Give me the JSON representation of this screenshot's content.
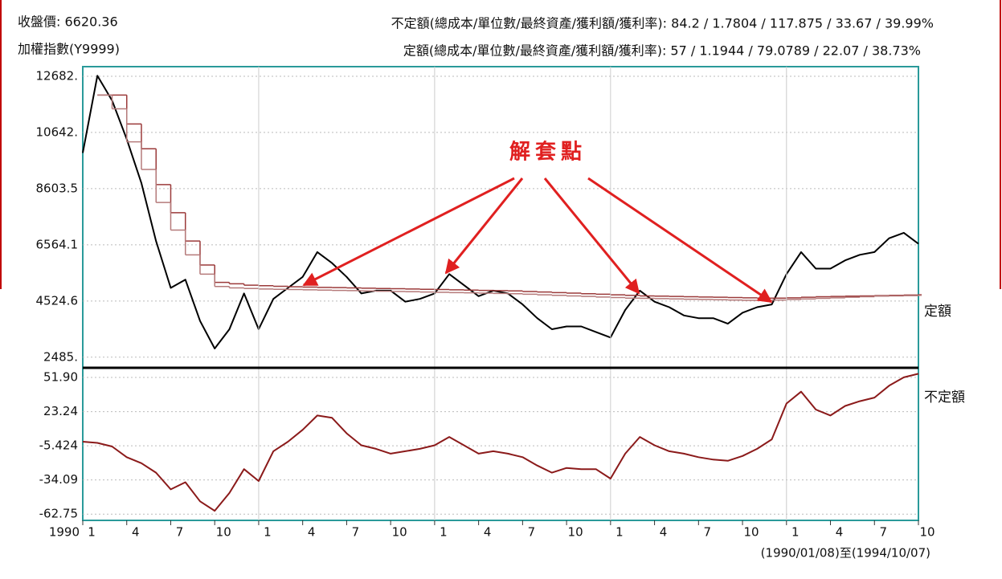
{
  "header": {
    "close": "收盤價: 6620.36",
    "index_name": "加權指數(Y9999)",
    "variable_summary": "不定額(總成本/單位數/最終資產/獲利額/獲利率): 84.2 / 1.7804 / 117.875 / 33.67 / 39.99%",
    "fixed_summary": "定額(總成本/單位數/最終資產/獲利額/獲利率): 57 / 1.1944 / 79.0789 / 22.07 / 38.73%"
  },
  "chart_data": [
    {
      "type": "line",
      "annotation": "解套點",
      "grid": true,
      "xlim": [
        0,
        57
      ],
      "ylim": [
        2100,
        13030
      ],
      "yticks": [
        {
          "value": 12682,
          "label": "12682."
        },
        {
          "value": 10642,
          "label": "10642."
        },
        8603.5,
        6564.1,
        4524.6,
        {
          "value": 2485,
          "label": "2485."
        }
      ],
      "series": [
        {
          "name": "加權指數(Y9999)",
          "color": "#000000",
          "values": [
            9900,
            12700,
            11800,
            10400,
            8800,
            6700,
            5000,
            5300,
            3800,
            2800,
            3500,
            4800,
            3500,
            4600,
            5000,
            5400,
            6300,
            5900,
            5400,
            4800,
            4900,
            4900,
            4500,
            4600,
            4800,
            5500,
            5100,
            4700,
            4900,
            4800,
            4400,
            3900,
            3500,
            3600,
            3600,
            3400,
            3200,
            4200,
            4900,
            4500,
            4300,
            4000,
            3900,
            3900,
            3700,
            4100,
            4300,
            4400,
            5500,
            6300,
            5700,
            5700,
            6000,
            6200,
            6300,
            6800,
            7000,
            6600
          ]
        },
        {
          "name": "定額",
          "color": "#9b3a3a",
          "step": true,
          "values": [
            null,
            12000,
            12000,
            10950,
            10050,
            8750,
            7730,
            6700,
            5830,
            5200,
            5150,
            5100,
            5080,
            5060,
            5040,
            5030,
            5020,
            5010,
            5000,
            4990,
            4980,
            4970,
            4960,
            4950,
            4940,
            4930,
            4920,
            4910,
            4900,
            4890,
            4870,
            4850,
            4830,
            4810,
            4790,
            4770,
            4750,
            4730,
            4710,
            4700,
            4690,
            4680,
            4670,
            4660,
            4650,
            4640,
            4630,
            4630,
            4640,
            4660,
            4680,
            4690,
            4700,
            4710,
            4720,
            4730,
            4740,
            4750
          ]
        },
        {
          "color": "#b57a7a",
          "step": true,
          "values": [
            null,
            12000,
            11500,
            10300,
            9300,
            8100,
            7100,
            6200,
            5500,
            5050,
            5000,
            4980,
            4960,
            4950,
            4940,
            4930,
            4920,
            4910,
            4900,
            4890,
            4880,
            4870,
            4860,
            4850,
            4840,
            4830,
            4820,
            4810,
            4800,
            4790,
            4770,
            4750,
            4730,
            4710,
            4690,
            4670,
            4650,
            4630,
            4620,
            4610,
            4600,
            4590,
            4580,
            4570,
            4560,
            4550,
            4550,
            4560,
            4580,
            4600,
            4620,
            4640,
            4660,
            4680,
            4700,
            4710,
            4720,
            4730
          ]
        }
      ]
    },
    {
      "type": "line",
      "grid": true,
      "x_start_label": "1990",
      "date_range": "(1990/01/08)至(1994/10/07)",
      "xlim": [
        0,
        57
      ],
      "ylim": [
        -68,
        60
      ],
      "xticks": [
        {
          "value": 0,
          "label": "1"
        },
        {
          "value": 3,
          "label": "4"
        },
        {
          "value": 6,
          "label": "7"
        },
        {
          "value": 9,
          "label": "10"
        },
        {
          "value": 12,
          "label": "1"
        },
        {
          "value": 15,
          "label": "4"
        },
        {
          "value": 18,
          "label": "7"
        },
        {
          "value": 21,
          "label": "10"
        },
        {
          "value": 24,
          "label": "1"
        },
        {
          "value": 27,
          "label": "4"
        },
        {
          "value": 30,
          "label": "7"
        },
        {
          "value": 33,
          "label": "10"
        },
        {
          "value": 36,
          "label": "1"
        },
        {
          "value": 39,
          "label": "4"
        },
        {
          "value": 42,
          "label": "7"
        },
        {
          "value": 45,
          "label": "10"
        },
        {
          "value": 48,
          "label": "1"
        },
        {
          "value": 51,
          "label": "4"
        },
        {
          "value": 54,
          "label": "7"
        },
        {
          "value": 57,
          "label": "10"
        }
      ],
      "yticks": [
        {
          "value": 51.9,
          "label": "51.90"
        },
        23.24,
        -5.424,
        -34.09,
        -62.75
      ],
      "series": [
        {
          "name": "不定額",
          "color": "#8b1a1a",
          "values": [
            -2,
            -3,
            -6,
            -15,
            -20,
            -28,
            -42,
            -36,
            -52,
            -60,
            -45,
            -25,
            -35,
            -10,
            -2,
            8,
            20,
            18,
            5,
            -5,
            -8,
            -12,
            -10,
            -8,
            -5,
            2,
            -5,
            -12,
            -10,
            -12,
            -15,
            -22,
            -28,
            -24,
            -25,
            -25,
            -33,
            -12,
            2,
            -5,
            -10,
            -12,
            -15,
            -17,
            -18,
            -14,
            -8,
            0,
            30,
            40,
            25,
            20,
            28,
            32,
            35,
            45,
            52,
            55
          ]
        }
      ]
    }
  ]
}
